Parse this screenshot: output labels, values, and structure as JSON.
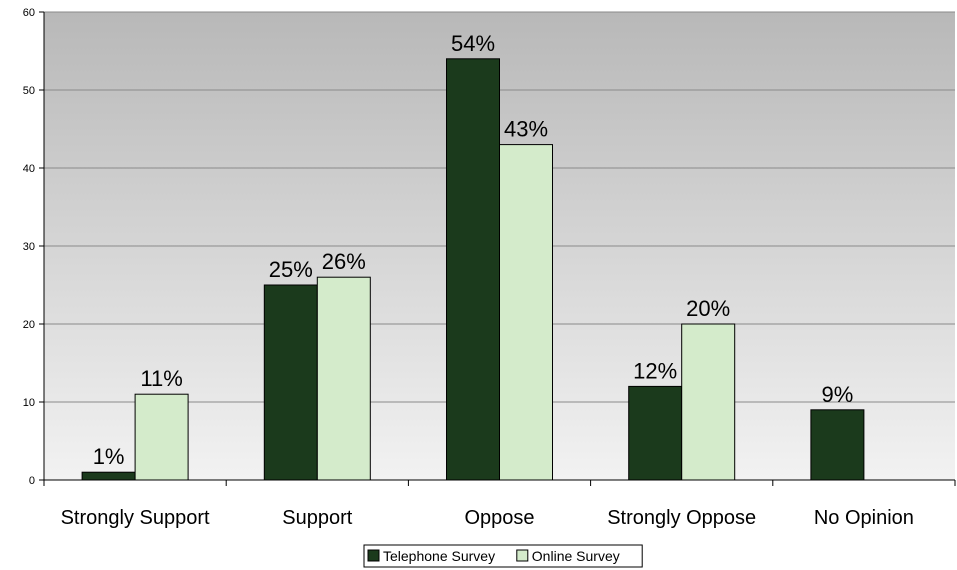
{
  "chart_data": {
    "type": "bar",
    "categories": [
      "Strongly Support",
      "Support",
      "Oppose",
      "Strongly Oppose",
      "No Opinion"
    ],
    "series": [
      {
        "name": "Telephone Survey",
        "values": [
          1,
          25,
          54,
          12,
          9
        ],
        "labels": [
          "1%",
          "25%",
          "54%",
          "12%",
          "9%"
        ],
        "color": "#1b3a1c"
      },
      {
        "name": "Online Survey",
        "values": [
          11,
          26,
          43,
          20,
          null
        ],
        "labels": [
          "11%",
          "26%",
          "43%",
          "20%",
          ""
        ],
        "color": "#d4ebcb"
      }
    ],
    "title": "",
    "xlabel": "",
    "ylabel": "",
    "ylim": [
      0,
      60
    ],
    "yticks": [
      0,
      10,
      20,
      30,
      40,
      50,
      60
    ],
    "grid": true,
    "legend_position": "bottom",
    "background_gradient": [
      "#b8b8b8",
      "#f2f2f2"
    ]
  }
}
